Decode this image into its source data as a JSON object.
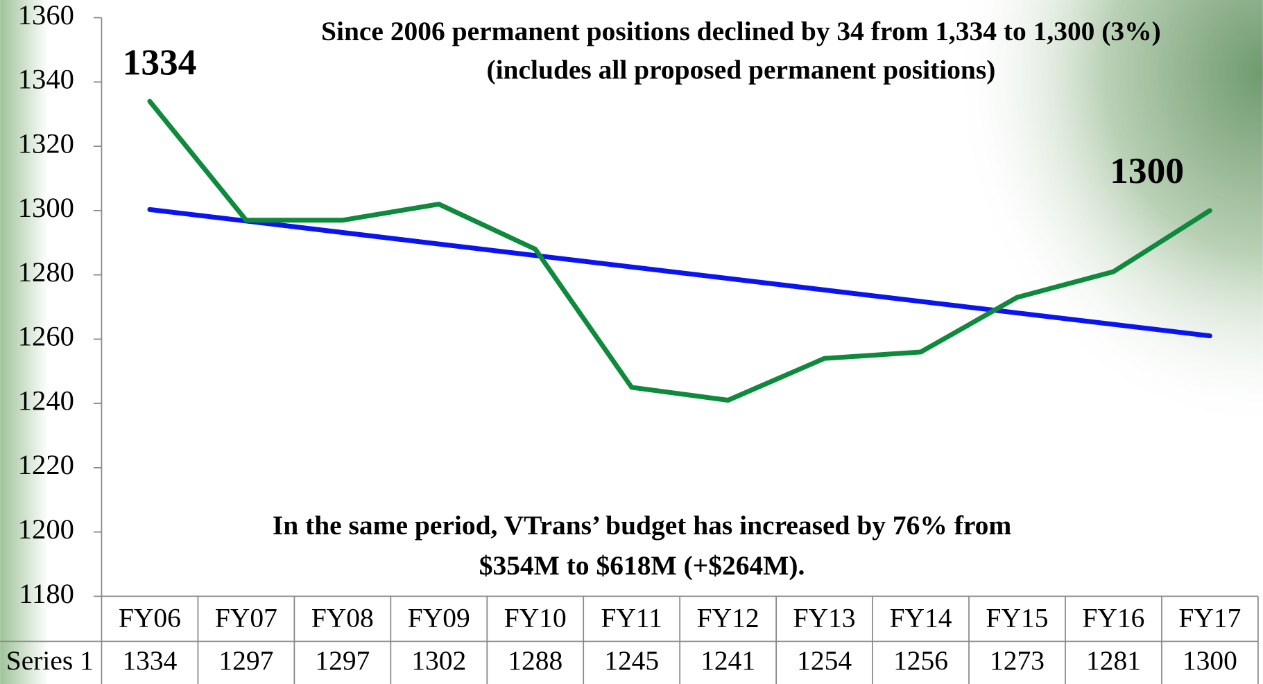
{
  "chart_data": {
    "type": "line",
    "title": [
      "Since 2006 permanent positions declined by 34 from 1,334 to 1,300 (3%)",
      "(includes all proposed permanent positions)"
    ],
    "annotations": [
      "In the same period, VTrans’ budget has increased by 76% from",
      "$354M to $618M (+$264M)."
    ],
    "categories": [
      "FY06",
      "FY07",
      "FY08",
      "FY09",
      "FY10",
      "FY11",
      "FY12",
      "FY13",
      "FY14",
      "FY15",
      "FY16",
      "FY17"
    ],
    "series": [
      {
        "name": "Series 1",
        "color": "#0f8a3c",
        "values": [
          1334,
          1297,
          1297,
          1302,
          1288,
          1245,
          1241,
          1254,
          1256,
          1273,
          1281,
          1300
        ]
      }
    ],
    "trendline": {
      "type": "linear",
      "color": "#0a14f0"
    },
    "ylim": [
      1180,
      1360
    ],
    "yticks": [
      1180,
      1200,
      1220,
      1240,
      1260,
      1280,
      1300,
      1320,
      1340,
      1360
    ],
    "data_table": true
  }
}
